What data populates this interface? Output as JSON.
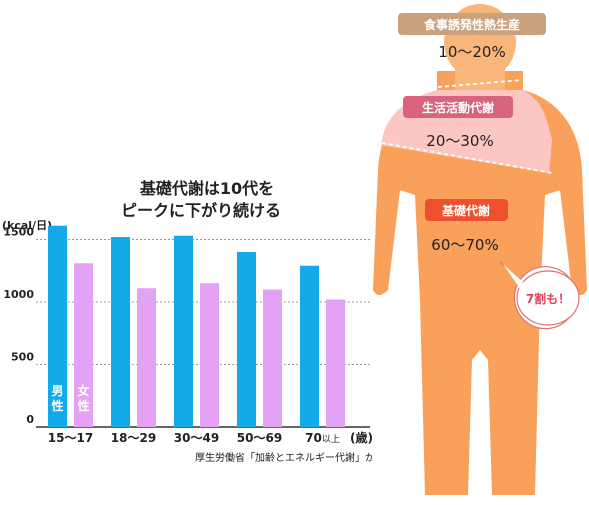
{
  "chart_data": {
    "type": "bar",
    "title_lines": [
      "基礎代謝は10代を",
      "ピークに下がり続ける"
    ],
    "ylabel": "(kcal/日)",
    "ylim": [
      0,
      1600
    ],
    "y_ticks": [
      "0",
      "500",
      "1000",
      "1500"
    ],
    "age_unit": "(歳)",
    "categories": [
      "15〜17",
      "18〜29",
      "30〜49",
      "50〜69",
      "70"
    ],
    "category_suffix_last": "以上",
    "series": [
      {
        "name": "男性",
        "color": "#14a9e8",
        "values": [
          1610,
          1520,
          1530,
          1400,
          1290
        ]
      },
      {
        "name": "女性",
        "color": "#e3a2f5",
        "values": [
          1310,
          1110,
          1150,
          1100,
          1020
        ]
      }
    ],
    "source": "厚生労働省「加齢とエネルギー代謝」から"
  },
  "body_figure": {
    "segments": [
      {
        "label": "食事誘発性熱生産",
        "percent": "10〜20%",
        "color": "#c9a27d"
      },
      {
        "label": "生活活動代謝",
        "percent": "20〜30%",
        "color": "#d9637c"
      },
      {
        "label": "基礎代謝",
        "percent": "60〜70%",
        "color": "#ee4f2e"
      }
    ],
    "callout": "7割も！",
    "colors": {
      "body": "#f9a15a",
      "chest": "#fcc7c2",
      "head": "#f9b67a"
    }
  }
}
